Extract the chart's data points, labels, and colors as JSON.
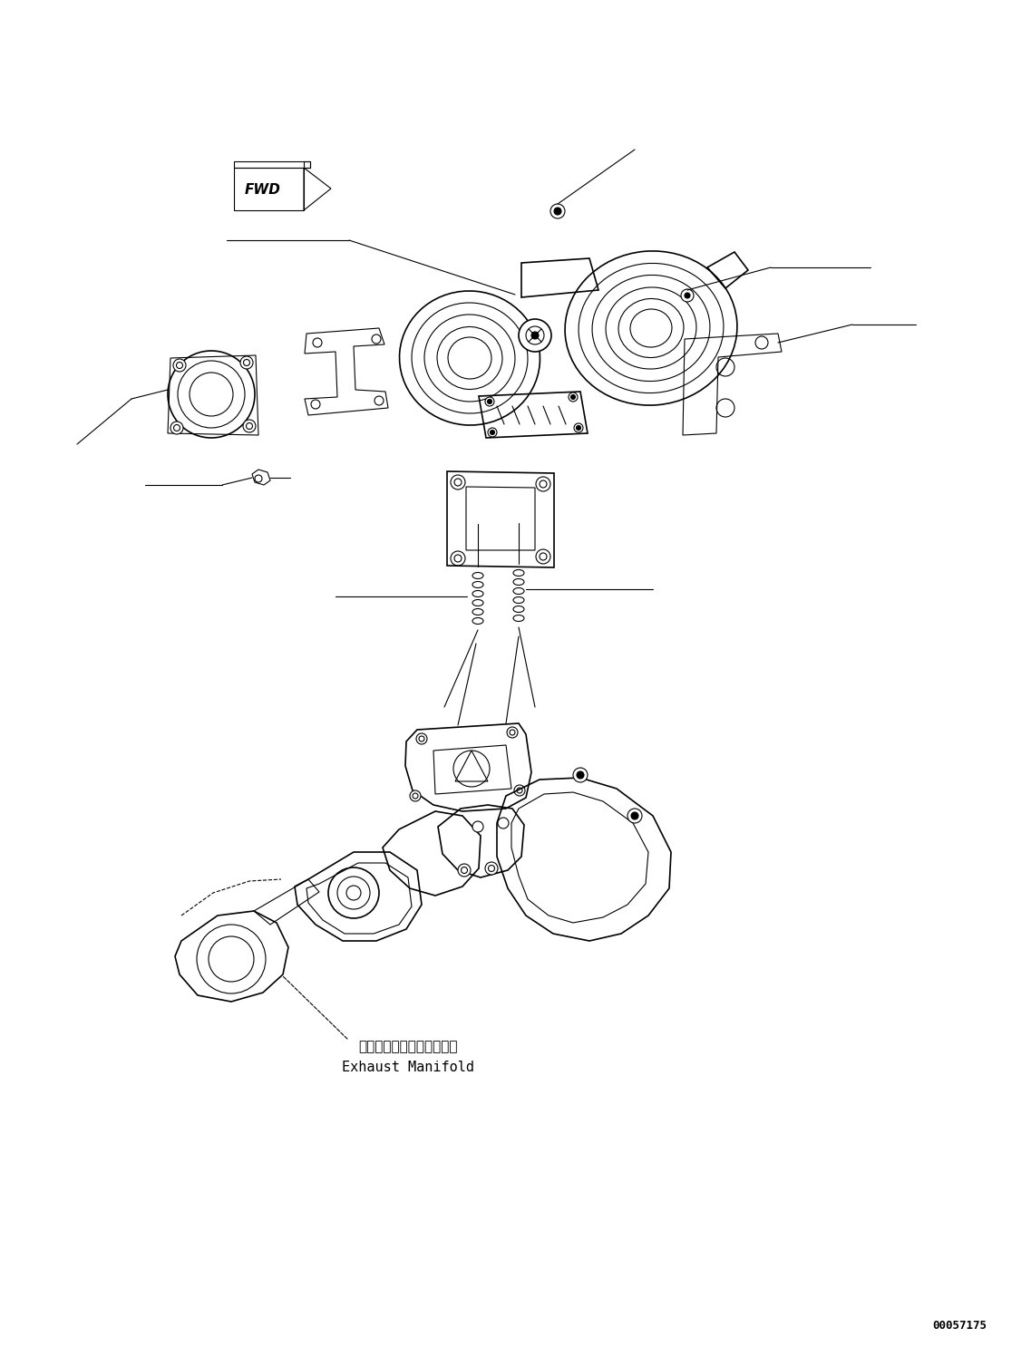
{
  "bg_color": "#ffffff",
  "line_color": "#000000",
  "fig_width": 11.37,
  "fig_height": 14.86,
  "dpi": 100,
  "part_number": "00057175",
  "label_japanese": "エキゾーストマニホールド",
  "label_english": "Exhaust Manifold",
  "fwd_label": "FWD"
}
